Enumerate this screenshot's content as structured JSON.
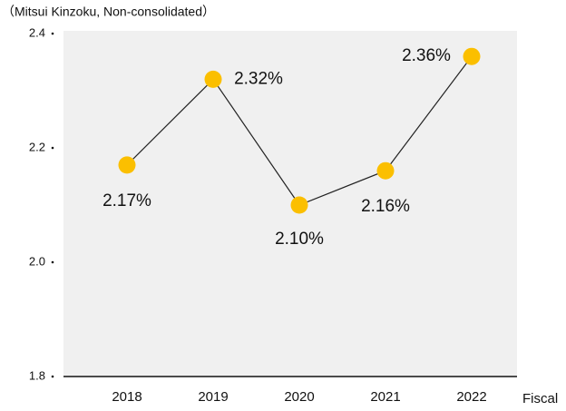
{
  "chart_data": {
    "type": "line",
    "subtitle": "（Mitsui Kinzoku, Non-consolidated）",
    "x_label": "Fiscal",
    "categories": [
      "2018",
      "2019",
      "2020",
      "2021",
      "2022"
    ],
    "series": [
      {
        "name": null,
        "color": "#fbbf00",
        "line_color": "#222222",
        "values": [
          2.17,
          2.32,
          2.1,
          2.16,
          2.36
        ],
        "value_labels": [
          "2.17%",
          "2.32%",
          "2.10%",
          "2.16%",
          "2.36%"
        ]
      }
    ],
    "ylim": [
      1.8,
      2.4
    ],
    "yticks": [
      1.8,
      {
        "value": 2,
        "label": "2.0"
      },
      2.2,
      2.4
    ],
    "plot_background": "#f0f0f0"
  }
}
